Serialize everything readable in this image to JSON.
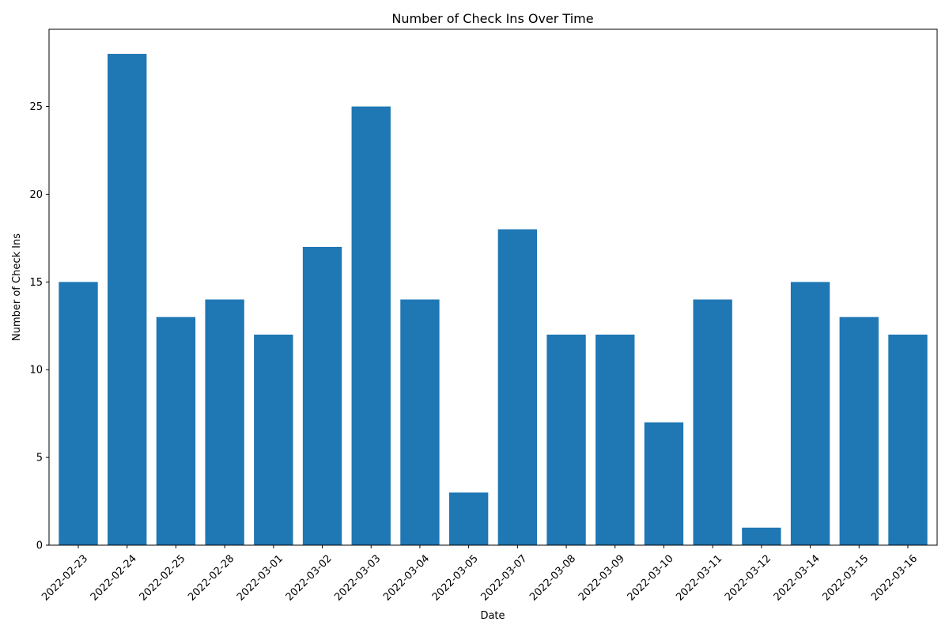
{
  "chart_data": {
    "type": "bar",
    "title": "Number of Check Ins Over Time",
    "xlabel": "Date",
    "ylabel": "Number of Check Ins",
    "categories": [
      "2022-02-23",
      "2022-02-24",
      "2022-02-25",
      "2022-02-28",
      "2022-03-01",
      "2022-03-02",
      "2022-03-03",
      "2022-03-04",
      "2022-03-05",
      "2022-03-07",
      "2022-03-08",
      "2022-03-09",
      "2022-03-10",
      "2022-03-11",
      "2022-03-12",
      "2022-03-14",
      "2022-03-15",
      "2022-03-16"
    ],
    "values": [
      15,
      28,
      13,
      14,
      12,
      17,
      25,
      14,
      3,
      18,
      12,
      12,
      7,
      14,
      1,
      15,
      13,
      12
    ],
    "ylim": [
      0,
      29.4
    ],
    "yticks": [
      0,
      5,
      10,
      15,
      20,
      25
    ],
    "grid": false,
    "legend": "none",
    "bar_color": "#1f77b4",
    "xtick_rotation_deg": 45
  }
}
